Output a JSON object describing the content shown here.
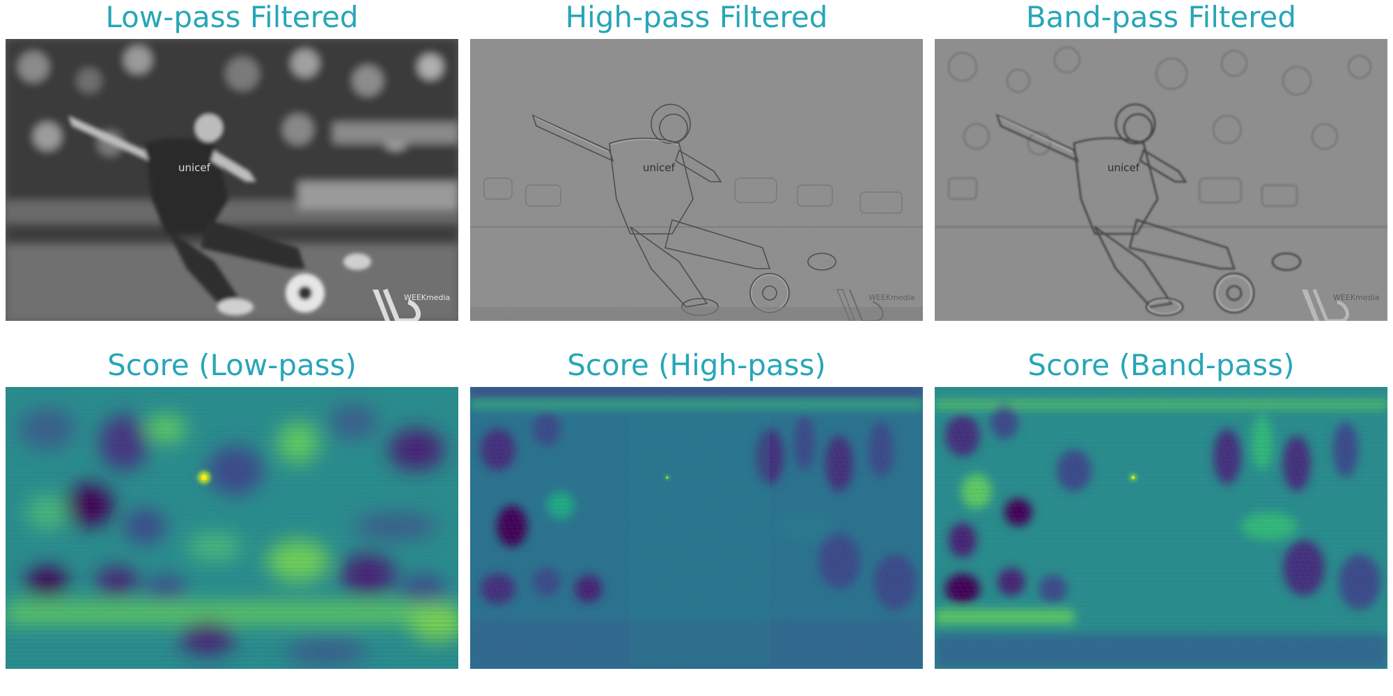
{
  "panels": [
    {
      "title": "Low-pass Filtered",
      "watermark": "WEEKmedia",
      "shirt_text": "unicef"
    },
    {
      "title": "High-pass Filtered",
      "watermark": "WEEKmedia",
      "shirt_text": "unicef"
    },
    {
      "title": "Band-pass Filtered",
      "watermark": "WEEKmedia",
      "shirt_text": "unicef"
    },
    {
      "title": "Score (Low-pass)"
    },
    {
      "title": "Score (High-pass)"
    },
    {
      "title": "Score (Band-pass)"
    }
  ],
  "colors": {
    "title": "#27a6b8",
    "viridis_dark": "#440154",
    "viridis_mid": "#21918c",
    "viridis_light": "#5ec962",
    "viridis_peak": "#fde725"
  }
}
